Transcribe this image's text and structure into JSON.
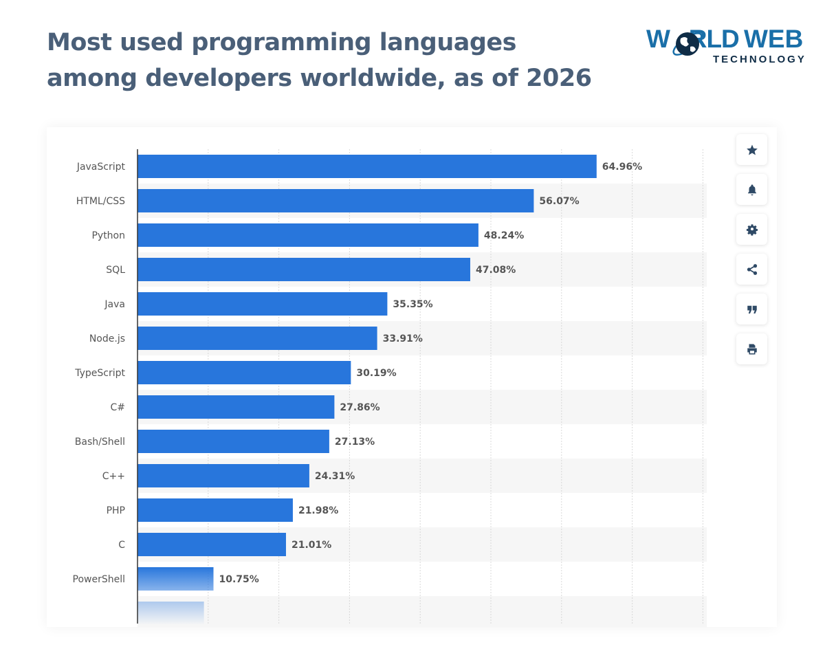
{
  "title_line1": "Most used programming languages",
  "title_line2": "among developers worldwide, as of 2026",
  "logo": {
    "word1": "WORLD",
    "word2": "WEB",
    "sub": "TECHNOLOGY"
  },
  "toolbar": [
    "star-icon",
    "bell-icon",
    "gear-icon",
    "share-icon",
    "quote-icon",
    "print-icon"
  ],
  "colors": {
    "bar": "#2876dc",
    "title": "#4a5f78",
    "band": "#f6f6f6"
  },
  "chart_data": {
    "type": "bar",
    "orientation": "horizontal",
    "categories": [
      "JavaScript",
      "HTML/CSS",
      "Python",
      "SQL",
      "Java",
      "Node.js",
      "TypeScript",
      "C#",
      "Bash/Shell",
      "C++",
      "PHP",
      "C",
      "PowerShell"
    ],
    "values": [
      64.96,
      56.07,
      48.24,
      47.08,
      35.35,
      33.91,
      30.19,
      27.86,
      27.13,
      24.31,
      21.98,
      21.01,
      10.75
    ],
    "data_labels": [
      "64.96%",
      "56.07%",
      "48.24%",
      "47.08%",
      "35.35%",
      "33.91%",
      "30.19%",
      "27.86%",
      "27.13%",
      "24.31%",
      "21.98%",
      "21.01%",
      "10.75%"
    ],
    "truncated_faded_bar_value": 9.4,
    "xlim": [
      0,
      80
    ],
    "grid": true,
    "xlabel": "",
    "ylabel": ""
  }
}
